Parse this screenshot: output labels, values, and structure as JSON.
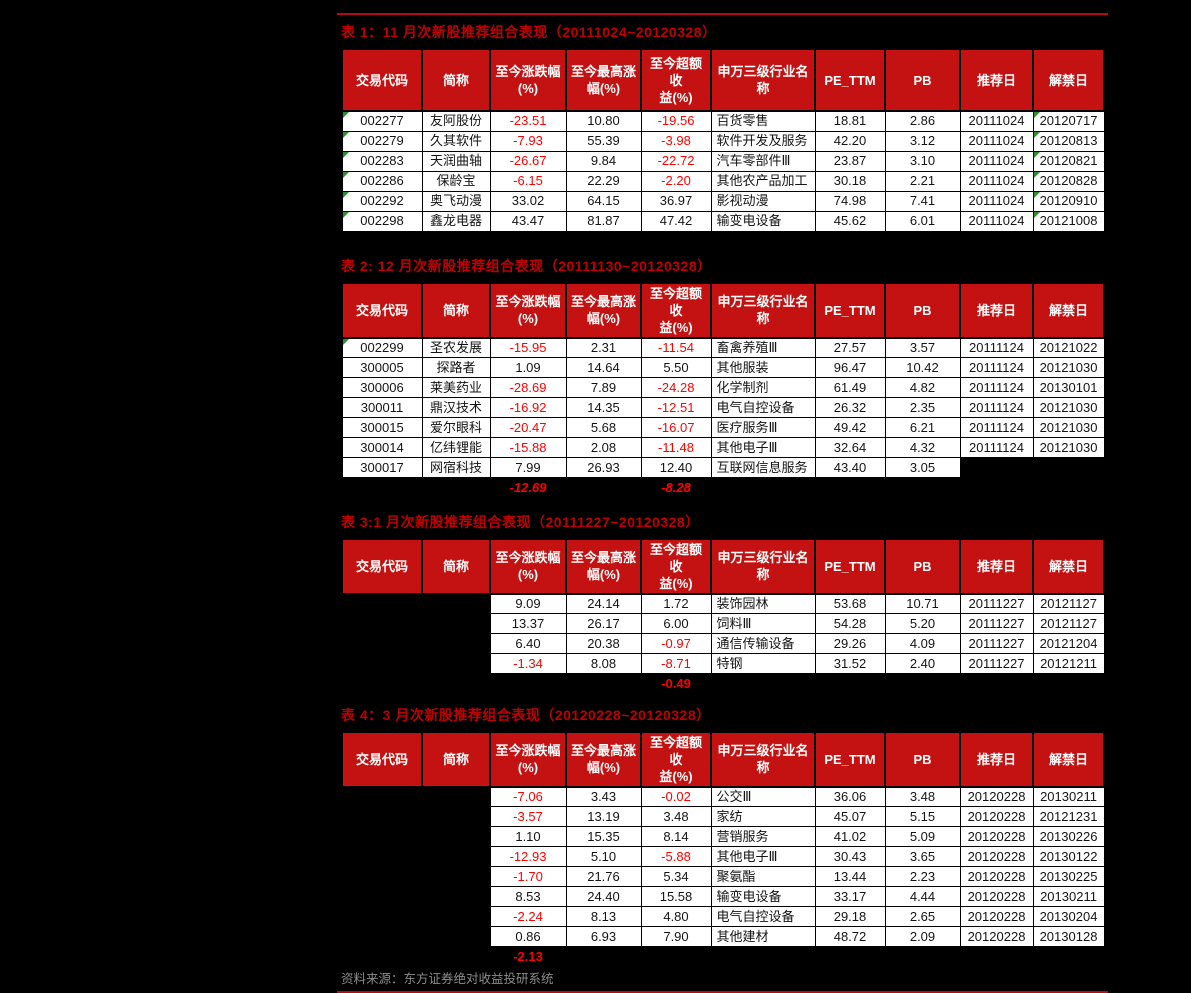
{
  "source_note": "资料来源：东方证券绝对收益投研系统",
  "colors": {
    "header_bg": "#c41111",
    "title_red": "#c00000",
    "negative_red": "#ff0000",
    "rule_red": "#b50d0d",
    "marker_green": "#2f8f2f",
    "source_gray": "#8c8c8c",
    "cell_bg": "#ffffff",
    "page_bg": "#000000"
  },
  "table_headers": [
    "交易代码",
    "简称",
    "至今涨跌幅\n(%)",
    "至今最高涨\n幅(%)",
    "至今超额收\n益(%)",
    "申万三级行业名\n称",
    "PE_TTM",
    "PB",
    "推荐日",
    "解禁日"
  ],
  "tables": [
    {
      "title": "表 1：11 月次新股推荐组合表现（20111024~20120328）",
      "tall_header": true,
      "rows": [
        {
          "code": "002277",
          "name": "友阿股份",
          "chg": "-23.51",
          "high": "10.80",
          "excess": "-19.56",
          "industry": "百货零售",
          "pe": "18.81",
          "pb": "2.86",
          "rec": "20111024",
          "unlock": "20120717",
          "code_flag": true,
          "unlock_flag": true
        },
        {
          "code": "002279",
          "name": "久其软件",
          "chg": "-7.93",
          "high": "55.39",
          "excess": "-3.98",
          "industry": "软件开发及服务",
          "pe": "42.20",
          "pb": "3.12",
          "rec": "20111024",
          "unlock": "20120813",
          "code_flag": true,
          "unlock_flag": true
        },
        {
          "code": "002283",
          "name": "天润曲轴",
          "chg": "-26.67",
          "high": "9.84",
          "excess": "-22.72",
          "industry": "汽车零部件Ⅲ",
          "pe": "23.87",
          "pb": "3.10",
          "rec": "20111024",
          "unlock": "20120821",
          "code_flag": true,
          "unlock_flag": true
        },
        {
          "code": "002286",
          "name": "保龄宝",
          "chg": "-6.15",
          "high": "22.29",
          "excess": "-2.20",
          "industry": "其他农产品加工",
          "pe": "30.18",
          "pb": "2.21",
          "rec": "20111024",
          "unlock": "20120828",
          "code_flag": true,
          "unlock_flag": true
        },
        {
          "code": "002292",
          "name": "奥飞动漫",
          "chg": "33.02",
          "high": "64.15",
          "excess": "36.97",
          "industry": "影视动漫",
          "pe": "74.98",
          "pb": "7.41",
          "rec": "20111024",
          "unlock": "20120910",
          "code_flag": true,
          "unlock_flag": true
        },
        {
          "code": "002298",
          "name": "鑫龙电器",
          "chg": "43.47",
          "high": "81.87",
          "excess": "47.42",
          "industry": "输变电设备",
          "pe": "45.62",
          "pb": "6.01",
          "rec": "20111024",
          "unlock": "20121008",
          "code_flag": true,
          "unlock_flag": true
        }
      ],
      "summary": null
    },
    {
      "title": "表 2: 12 月次新股推荐组合表现（20111130~20120328）",
      "tall_header": false,
      "rows": [
        {
          "code": "002299",
          "name": "圣农发展",
          "chg": "-15.95",
          "high": "2.31",
          "excess": "-11.54",
          "industry": "畜禽养殖Ⅲ",
          "pe": "27.57",
          "pb": "3.57",
          "rec": "20111124",
          "unlock": "20121022",
          "code_flag": true
        },
        {
          "code": "300005",
          "name": "探路者",
          "chg": "1.09",
          "high": "14.64",
          "excess": "5.50",
          "industry": "其他服装",
          "pe": "96.47",
          "pb": "10.42",
          "rec": "20111124",
          "unlock": "20121030"
        },
        {
          "code": "300006",
          "name": "莱美药业",
          "chg": "-28.69",
          "high": "7.89",
          "excess": "-24.28",
          "industry": "化学制剂",
          "pe": "61.49",
          "pb": "4.82",
          "rec": "20111124",
          "unlock": "20130101"
        },
        {
          "code": "300011",
          "name": "鼎汉技术",
          "chg": "-16.92",
          "high": "14.35",
          "excess": "-12.51",
          "industry": "电气自控设备",
          "pe": "26.32",
          "pb": "2.35",
          "rec": "20111124",
          "unlock": "20121030"
        },
        {
          "code": "300015",
          "name": "爱尔眼科",
          "chg": "-20.47",
          "high": "5.68",
          "excess": "-16.07",
          "industry": "医疗服务Ⅲ",
          "pe": "49.42",
          "pb": "6.21",
          "rec": "20111124",
          "unlock": "20121030"
        },
        {
          "code": "300014",
          "name": "亿纬锂能",
          "chg": "-15.88",
          "high": "2.08",
          "excess": "-11.48",
          "industry": "其他电子Ⅲ",
          "pe": "32.64",
          "pb": "4.32",
          "rec": "20111124",
          "unlock": "20121030"
        },
        {
          "code": "300017",
          "name": "网宿科技",
          "chg": "7.99",
          "high": "26.93",
          "excess": "12.40",
          "industry": "互联网信息服务",
          "pe": "43.40",
          "pb": "3.05",
          "rec": null,
          "unlock": null
        }
      ],
      "summary": {
        "chg": "-12.69",
        "excess": "-8.28",
        "italic": true
      }
    },
    {
      "title": "表 3:1 月次新股推荐组合表现（20111227~20120328）",
      "tall_header": false,
      "rows": [
        {
          "code": null,
          "name": null,
          "chg": "9.09",
          "high": "24.14",
          "excess": "1.72",
          "industry": "装饰园林",
          "pe": "53.68",
          "pb": "10.71",
          "rec": "20111227",
          "unlock": "20121127"
        },
        {
          "code": null,
          "name": null,
          "chg": "13.37",
          "high": "26.17",
          "excess": "6.00",
          "industry": "饲料Ⅲ",
          "pe": "54.28",
          "pb": "5.20",
          "rec": "20111227",
          "unlock": "20121127"
        },
        {
          "code": null,
          "name": null,
          "chg": "6.40",
          "high": "20.38",
          "excess": "-0.97",
          "industry": "通信传输设备",
          "pe": "29.26",
          "pb": "4.09",
          "rec": "20111227",
          "unlock": "20121204"
        },
        {
          "code": null,
          "name": null,
          "chg": "-1.34",
          "high": "8.08",
          "excess": "-8.71",
          "industry": "特钢",
          "pe": "31.52",
          "pb": "2.40",
          "rec": "20111227",
          "unlock": "20121211"
        }
      ],
      "summary": {
        "excess": "-0.49",
        "italic": false
      }
    },
    {
      "title": "表 4：3 月次新股推荐组合表现（20120228~20120328）",
      "tall_header": false,
      "rows": [
        {
          "code": null,
          "name": null,
          "chg": "-7.06",
          "high": "3.43",
          "excess": "-0.02",
          "industry": "公交Ⅲ",
          "pe": "36.06",
          "pb": "3.48",
          "rec": "20120228",
          "unlock": "20130211"
        },
        {
          "code": null,
          "name": null,
          "chg": "-3.57",
          "high": "13.19",
          "excess": "3.48",
          "industry": "家纺",
          "pe": "45.07",
          "pb": "5.15",
          "rec": "20120228",
          "unlock": "20121231"
        },
        {
          "code": null,
          "name": null,
          "chg": "1.10",
          "high": "15.35",
          "excess": "8.14",
          "industry": "营销服务",
          "pe": "41.02",
          "pb": "5.09",
          "rec": "20120228",
          "unlock": "20130226"
        },
        {
          "code": null,
          "name": null,
          "chg": "-12.93",
          "high": "5.10",
          "excess": "-5.88",
          "industry": "其他电子Ⅲ",
          "pe": "30.43",
          "pb": "3.65",
          "rec": "20120228",
          "unlock": "20130122"
        },
        {
          "code": null,
          "name": null,
          "chg": "-1.70",
          "high": "21.76",
          "excess": "5.34",
          "industry": "聚氨酯",
          "pe": "13.44",
          "pb": "2.23",
          "rec": "20120228",
          "unlock": "20130225"
        },
        {
          "code": null,
          "name": null,
          "chg": "8.53",
          "high": "24.40",
          "excess": "15.58",
          "industry": "输变电设备",
          "pe": "33.17",
          "pb": "4.44",
          "rec": "20120228",
          "unlock": "20130211"
        },
        {
          "code": null,
          "name": null,
          "chg": "-2.24",
          "high": "8.13",
          "excess": "4.80",
          "industry": "电气自控设备",
          "pe": "29.18",
          "pb": "2.65",
          "rec": "20120228",
          "unlock": "20130204"
        },
        {
          "code": null,
          "name": null,
          "chg": "0.86",
          "high": "6.93",
          "excess": "7.90",
          "industry": "其他建材",
          "pe": "48.72",
          "pb": "2.09",
          "rec": "20120228",
          "unlock": "20130128"
        }
      ],
      "summary": {
        "chg": "-2.13",
        "italic": false
      }
    }
  ]
}
